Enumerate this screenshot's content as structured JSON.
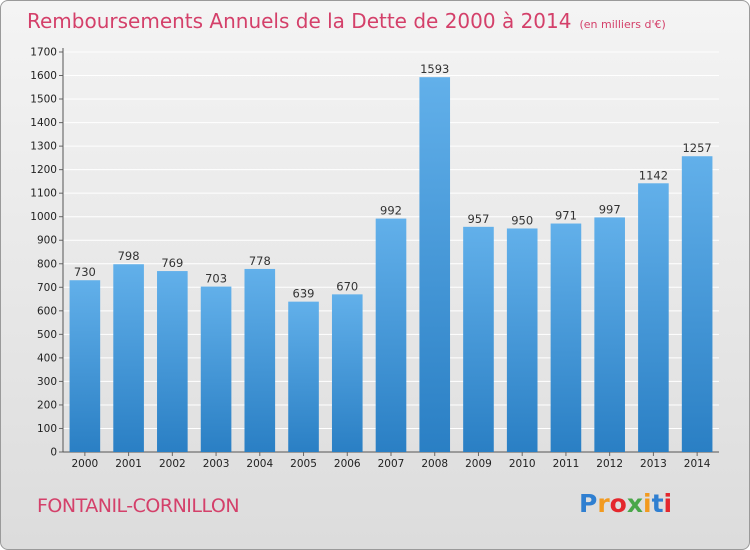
{
  "header": {
    "title": "Remboursements Annuels de la Dette de 2000 à 2014",
    "subtitle": "(en milliers d'€)"
  },
  "footer": {
    "commune": "FONTANIL-CORNILLON",
    "logo": {
      "letters": [
        {
          "char": "P",
          "color": "#2f7fd1"
        },
        {
          "char": "r",
          "color": "#f29a1f"
        },
        {
          "char": "o",
          "color": "#e4272d"
        },
        {
          "char": "x",
          "color": "#4aa74a"
        },
        {
          "char": "i",
          "color": "#f29a1f"
        },
        {
          "char": "t",
          "color": "#2f7fd1"
        },
        {
          "char": "i",
          "color": "#e4272d"
        }
      ]
    }
  },
  "colors": {
    "title": "#d4406a",
    "bar_light": "#62b0ea",
    "bar_dark": "#2a7fc4",
    "grid": "#ffffff"
  },
  "chart_data": {
    "type": "bar",
    "categories": [
      "2000",
      "2001",
      "2002",
      "2003",
      "2004",
      "2005",
      "2006",
      "2007",
      "2008",
      "2009",
      "2010",
      "2011",
      "2012",
      "2013",
      "2014"
    ],
    "values": [
      730,
      798,
      769,
      703,
      778,
      639,
      670,
      992,
      1593,
      957,
      950,
      971,
      997,
      1142,
      1257
    ],
    "yticks": [
      0,
      100,
      200,
      300,
      400,
      500,
      600,
      700,
      800,
      900,
      1000,
      1100,
      1200,
      1300,
      1400,
      1500,
      1600,
      1700
    ],
    "ylim": [
      0,
      1700
    ],
    "grid": true,
    "data_labels": true
  }
}
